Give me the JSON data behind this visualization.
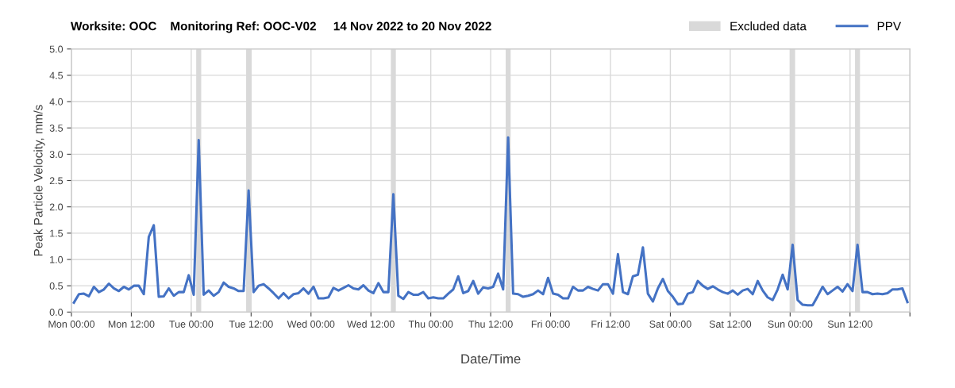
{
  "chart_data": {
    "type": "line",
    "title": "Worksite: OOC    Monitoring Ref: OOC-V02     14 Nov 2022 to 20 Nov 2022",
    "xlabel": "Date/Time",
    "ylabel": "Peak Particle Velocity, mm/s",
    "x": [
      "2022-11-14T00:30",
      "2022-11-14T01:30",
      "2022-11-14T02:30",
      "2022-11-14T03:30",
      "2022-11-14T04:30",
      "2022-11-14T05:30",
      "2022-11-14T06:30",
      "2022-11-14T07:30",
      "2022-11-14T08:30",
      "2022-11-14T09:30",
      "2022-11-14T10:30",
      "2022-11-14T11:30",
      "2022-11-14T12:30",
      "2022-11-14T13:30",
      "2022-11-14T14:30",
      "2022-11-14T15:30",
      "2022-11-14T16:30",
      "2022-11-14T17:30",
      "2022-11-14T18:30",
      "2022-11-14T19:30",
      "2022-11-14T20:30",
      "2022-11-14T21:30",
      "2022-11-14T22:30",
      "2022-11-14T23:30",
      "2022-11-15T00:30",
      "2022-11-15T01:30",
      "2022-11-15T02:30",
      "2022-11-15T03:30",
      "2022-11-15T04:30",
      "2022-11-15T05:30",
      "2022-11-15T06:30",
      "2022-11-15T07:30",
      "2022-11-15T08:30",
      "2022-11-15T09:30",
      "2022-11-15T10:30",
      "2022-11-15T11:30",
      "2022-11-15T12:30",
      "2022-11-15T13:30",
      "2022-11-15T14:30",
      "2022-11-15T15:30",
      "2022-11-15T16:30",
      "2022-11-15T17:30",
      "2022-11-15T18:30",
      "2022-11-15T19:30",
      "2022-11-15T20:30",
      "2022-11-15T21:30",
      "2022-11-15T22:30",
      "2022-11-15T23:30",
      "2022-11-16T00:30",
      "2022-11-16T01:30",
      "2022-11-16T02:30",
      "2022-11-16T03:30",
      "2022-11-16T04:30",
      "2022-11-16T05:30",
      "2022-11-16T06:30",
      "2022-11-16T07:30",
      "2022-11-16T08:30",
      "2022-11-16T09:30",
      "2022-11-16T10:30",
      "2022-11-16T11:30",
      "2022-11-16T12:30",
      "2022-11-16T13:30",
      "2022-11-16T14:30",
      "2022-11-16T15:30",
      "2022-11-16T16:30",
      "2022-11-16T17:30",
      "2022-11-16T18:30",
      "2022-11-16T19:30",
      "2022-11-16T20:30",
      "2022-11-16T21:30",
      "2022-11-16T22:30",
      "2022-11-16T23:30",
      "2022-11-17T00:30",
      "2022-11-17T01:30",
      "2022-11-17T02:30",
      "2022-11-17T03:30",
      "2022-11-17T04:30",
      "2022-11-17T05:30",
      "2022-11-17T06:30",
      "2022-11-17T07:30",
      "2022-11-17T08:30",
      "2022-11-17T09:30",
      "2022-11-17T10:30",
      "2022-11-17T11:30",
      "2022-11-17T12:30",
      "2022-11-17T13:30",
      "2022-11-17T14:30",
      "2022-11-17T15:30",
      "2022-11-17T16:30",
      "2022-11-17T17:30",
      "2022-11-17T18:30",
      "2022-11-17T19:30",
      "2022-11-17T20:30",
      "2022-11-17T21:30",
      "2022-11-17T22:30",
      "2022-11-17T23:30",
      "2022-11-18T00:30",
      "2022-11-18T01:30",
      "2022-11-18T02:30",
      "2022-11-18T03:30",
      "2022-11-18T04:30",
      "2022-11-18T05:30",
      "2022-11-18T06:30",
      "2022-11-18T07:30",
      "2022-11-18T08:30",
      "2022-11-18T09:30",
      "2022-11-18T10:30",
      "2022-11-18T11:30",
      "2022-11-18T12:30",
      "2022-11-18T13:30",
      "2022-11-18T14:30",
      "2022-11-18T15:30",
      "2022-11-18T16:30",
      "2022-11-18T17:30",
      "2022-11-18T18:30",
      "2022-11-18T19:30",
      "2022-11-18T20:30",
      "2022-11-18T21:30",
      "2022-11-18T22:30",
      "2022-11-18T23:30",
      "2022-11-19T00:30",
      "2022-11-19T01:30",
      "2022-11-19T02:30",
      "2022-11-19T03:30",
      "2022-11-19T04:30",
      "2022-11-19T05:30",
      "2022-11-19T06:30",
      "2022-11-19T07:30",
      "2022-11-19T08:30",
      "2022-11-19T09:30",
      "2022-11-19T10:30",
      "2022-11-19T11:30",
      "2022-11-19T12:30",
      "2022-11-19T13:30",
      "2022-11-19T14:30",
      "2022-11-19T15:30",
      "2022-11-19T16:30",
      "2022-11-19T17:30",
      "2022-11-19T18:30",
      "2022-11-19T19:30",
      "2022-11-19T20:30",
      "2022-11-19T21:30",
      "2022-11-19T22:30",
      "2022-11-19T23:30",
      "2022-11-20T00:30",
      "2022-11-20T01:30",
      "2022-11-20T02:30",
      "2022-11-20T03:30",
      "2022-11-20T04:30",
      "2022-11-20T05:30",
      "2022-11-20T06:30",
      "2022-11-20T07:30",
      "2022-11-20T08:30",
      "2022-11-20T09:30",
      "2022-11-20T10:30",
      "2022-11-20T11:30",
      "2022-11-20T12:30",
      "2022-11-20T13:30",
      "2022-11-20T14:30",
      "2022-11-20T15:30",
      "2022-11-20T16:30",
      "2022-11-20T17:30",
      "2022-11-20T18:30",
      "2022-11-20T19:30",
      "2022-11-20T20:30",
      "2022-11-20T21:30",
      "2022-11-20T22:30",
      "2022-11-20T23:30"
    ],
    "series": [
      {
        "name": "PPV",
        "color": "#4472c4",
        "values": [
          0.18,
          0.34,
          0.35,
          0.3,
          0.48,
          0.38,
          0.43,
          0.54,
          0.45,
          0.4,
          0.48,
          0.43,
          0.5,
          0.5,
          0.34,
          1.43,
          1.65,
          0.29,
          0.3,
          0.45,
          0.31,
          0.38,
          0.38,
          0.7,
          0.33,
          3.27,
          0.33,
          0.41,
          0.31,
          0.38,
          0.56,
          0.48,
          0.45,
          0.4,
          0.4,
          2.31,
          0.38,
          0.5,
          0.53,
          0.45,
          0.36,
          0.26,
          0.36,
          0.26,
          0.34,
          0.36,
          0.45,
          0.35,
          0.48,
          0.26,
          0.26,
          0.28,
          0.46,
          0.41,
          0.46,
          0.51,
          0.45,
          0.43,
          0.51,
          0.41,
          0.36,
          0.55,
          0.38,
          0.38,
          2.24,
          0.31,
          0.25,
          0.38,
          0.33,
          0.33,
          0.38,
          0.26,
          0.28,
          0.26,
          0.26,
          0.35,
          0.43,
          0.68,
          0.36,
          0.4,
          0.59,
          0.35,
          0.47,
          0.45,
          0.48,
          0.73,
          0.43,
          3.32,
          0.35,
          0.34,
          0.29,
          0.31,
          0.34,
          0.41,
          0.34,
          0.65,
          0.35,
          0.33,
          0.26,
          0.26,
          0.48,
          0.41,
          0.41,
          0.48,
          0.44,
          0.41,
          0.53,
          0.53,
          0.35,
          1.1,
          0.38,
          0.34,
          0.68,
          0.71,
          1.23,
          0.35,
          0.2,
          0.45,
          0.63,
          0.4,
          0.29,
          0.15,
          0.16,
          0.35,
          0.38,
          0.59,
          0.5,
          0.44,
          0.49,
          0.43,
          0.38,
          0.35,
          0.41,
          0.33,
          0.41,
          0.44,
          0.34,
          0.59,
          0.41,
          0.28,
          0.23,
          0.43,
          0.71,
          0.43,
          1.28,
          0.23,
          0.14,
          0.13,
          0.13,
          0.3,
          0.48,
          0.34,
          0.41,
          0.48,
          0.39,
          0.53,
          0.4,
          1.28,
          0.38,
          0.38,
          0.34,
          0.35,
          0.34,
          0.36,
          0.43,
          0.43,
          0.45,
          0.19
        ]
      }
    ],
    "bands": [
      {
        "axis": "x",
        "from": "2022-11-15T01:00",
        "to": "2022-11-15T02:00",
        "label": "Excluded data",
        "color": "#d9d9d9"
      },
      {
        "axis": "x",
        "from": "2022-11-15T11:00",
        "to": "2022-11-15T12:00",
        "color": "#d9d9d9"
      },
      {
        "axis": "x",
        "from": "2022-11-16T16:00",
        "to": "2022-11-16T17:00",
        "color": "#d9d9d9"
      },
      {
        "axis": "x",
        "from": "2022-11-17T15:00",
        "to": "2022-11-17T16:00",
        "color": "#d9d9d9"
      },
      {
        "axis": "x",
        "from": "2022-11-20T00:00",
        "to": "2022-11-20T01:00",
        "color": "#d9d9d9"
      },
      {
        "axis": "x",
        "from": "2022-11-20T13:00",
        "to": "2022-11-20T14:00",
        "color": "#d9d9d9"
      }
    ],
    "xlim": [
      "2022-11-14T00:00",
      "2022-11-21T00:00"
    ],
    "xticks": [
      {
        "value": "2022-11-14T00:00",
        "label": "Mon 00:00"
      },
      {
        "value": "2022-11-14T12:00",
        "label": "Mon 12:00"
      },
      {
        "value": "2022-11-15T00:00",
        "label": "Tue 00:00"
      },
      {
        "value": "2022-11-15T12:00",
        "label": "Tue 12:00"
      },
      {
        "value": "2022-11-16T00:00",
        "label": "Wed 00:00"
      },
      {
        "value": "2022-11-16T12:00",
        "label": "Wed 12:00"
      },
      {
        "value": "2022-11-17T00:00",
        "label": "Thu 00:00"
      },
      {
        "value": "2022-11-17T12:00",
        "label": "Thu 12:00"
      },
      {
        "value": "2022-11-18T00:00",
        "label": "Fri 00:00"
      },
      {
        "value": "2022-11-18T12:00",
        "label": "Fri 12:00"
      },
      {
        "value": "2022-11-19T00:00",
        "label": "Sat 00:00"
      },
      {
        "value": "2022-11-19T12:00",
        "label": "Sat 12:00"
      },
      {
        "value": "2022-11-20T00:00",
        "label": "Sun 00:00"
      },
      {
        "value": "2022-11-20T12:00",
        "label": "Sun 12:00"
      },
      {
        "value": "2022-11-21T00:00",
        "label": null
      }
    ],
    "ylim": [
      0,
      5
    ],
    "yticks": [
      {
        "value": 0,
        "label": "0.0"
      },
      {
        "value": 0.5,
        "label": "0.5"
      },
      {
        "value": 1,
        "label": "1.0"
      },
      {
        "value": 1.5,
        "label": "1.5"
      },
      {
        "value": 2,
        "label": "2.0"
      },
      {
        "value": 2.5,
        "label": "2.5"
      },
      {
        "value": 3,
        "label": "3.0"
      },
      {
        "value": 3.5,
        "label": "3.5"
      },
      {
        "value": 4,
        "label": "4.0"
      },
      {
        "value": 4.5,
        "label": "4.5"
      },
      {
        "value": 5,
        "label": "5.0"
      }
    ],
    "grid": true,
    "legend": "top right",
    "marker": "none",
    "line_style": "solid"
  }
}
